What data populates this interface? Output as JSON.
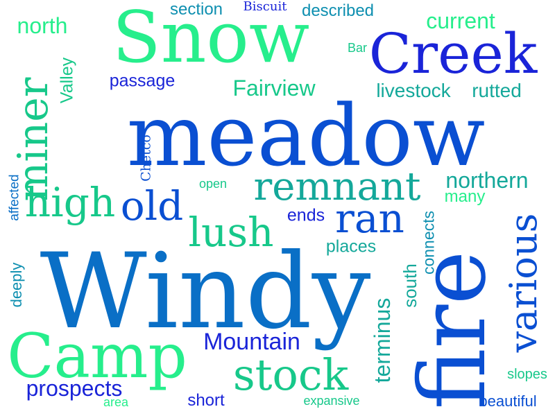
{
  "colors": {
    "mint": "#26ee8c",
    "green": "#17c88a",
    "teal": "#14a89a",
    "cyan": "#0e8fb0",
    "blue": "#0a6fc6",
    "royal": "#0a4fd2",
    "indigo": "#1a24d8",
    "background": "#ffffff"
  },
  "words": {
    "meadow": "meadow",
    "windy": "Windy",
    "snow": "Snow",
    "creek": "Creek",
    "fire": "fire",
    "camp": "Camp",
    "stock": "stock",
    "remnant": "remnant",
    "miner": "miner",
    "high": "high",
    "old": "old",
    "lush": "lush",
    "ran": "ran",
    "various": "various",
    "mountain": "Mountain",
    "prospects": "prospects",
    "fairview": "Fairview",
    "northern": "northern",
    "north": "north",
    "current": "current",
    "terminus": "terminus",
    "livestock": "livestock",
    "rutted": "rutted",
    "section": "section",
    "described": "described",
    "biscuit": "Biscuit",
    "passage": "passage",
    "valley": "Valley",
    "chetco": "Chetco",
    "affected": "affected",
    "deeply": "deeply",
    "open": "open",
    "ends": "ends",
    "places": "places",
    "south": "south",
    "connects": "connects",
    "many": "many",
    "bar": "Bar",
    "short": "short",
    "area": "area",
    "expansive": "expansive",
    "slopes": "slopes",
    "beautiful": "beautiful"
  }
}
